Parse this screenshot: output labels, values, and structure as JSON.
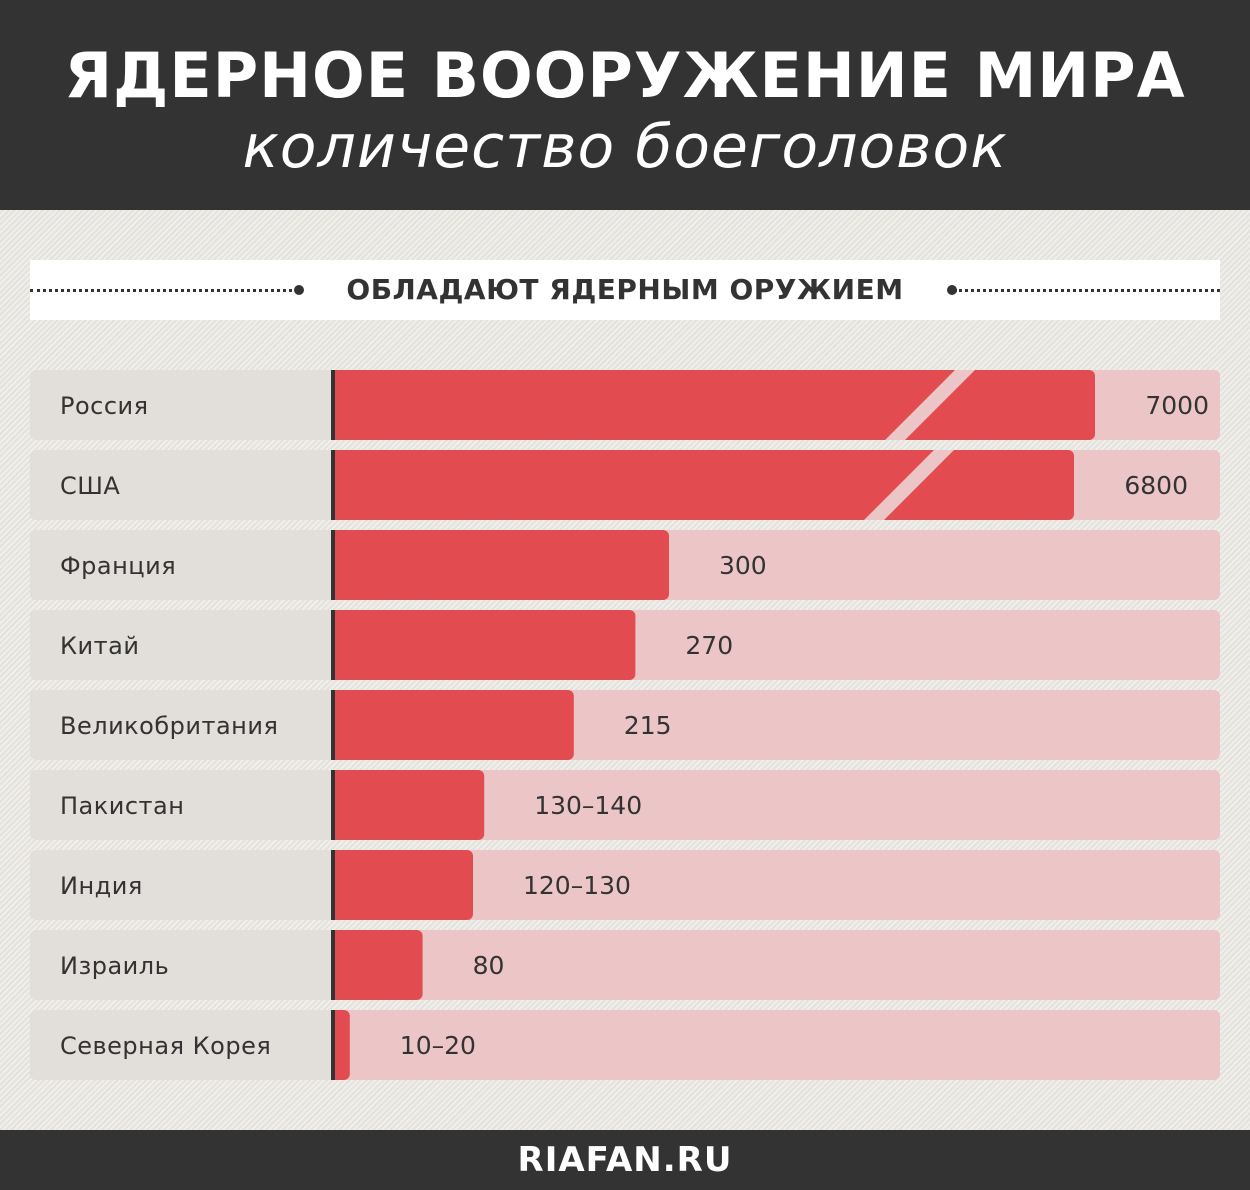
{
  "header": {
    "title": "ЯДЕРНОЕ ВООРУЖЕНИЕ МИРА",
    "subtitle": "количество боеголовок"
  },
  "section": {
    "label": "ОБЛАДАЮТ ЯДЕРНЫМ ОРУЖИЕМ"
  },
  "footer": {
    "source": "RIAFAN.RU"
  },
  "colors": {
    "bar": "#e24b4f",
    "track": "#ecc6c6",
    "label_bg": "#e2deda",
    "axis": "#333333",
    "header_bg": "#333333"
  },
  "chart_data": {
    "type": "bar",
    "orientation": "horizontal",
    "title": "ЯДЕРНОЕ ВООРУЖЕНИЕ МИРА",
    "subtitle": "количество боеголовок",
    "categories": [
      "Россия",
      "США",
      "Франция",
      "Китай",
      "Великобритания",
      "Пакистан",
      "Индия",
      "Израиль",
      "Северная Корея"
    ],
    "values": [
      7000,
      6800,
      300,
      270,
      215,
      135,
      125,
      80,
      15
    ],
    "value_labels": [
      "7000",
      "6800",
      "300",
      "270",
      "215",
      "130–140",
      "120–130",
      "80",
      "10–20"
    ],
    "broken_axis": [
      true,
      true,
      false,
      false,
      false,
      false,
      false,
      false,
      false
    ],
    "grid": false,
    "legend": "none"
  }
}
